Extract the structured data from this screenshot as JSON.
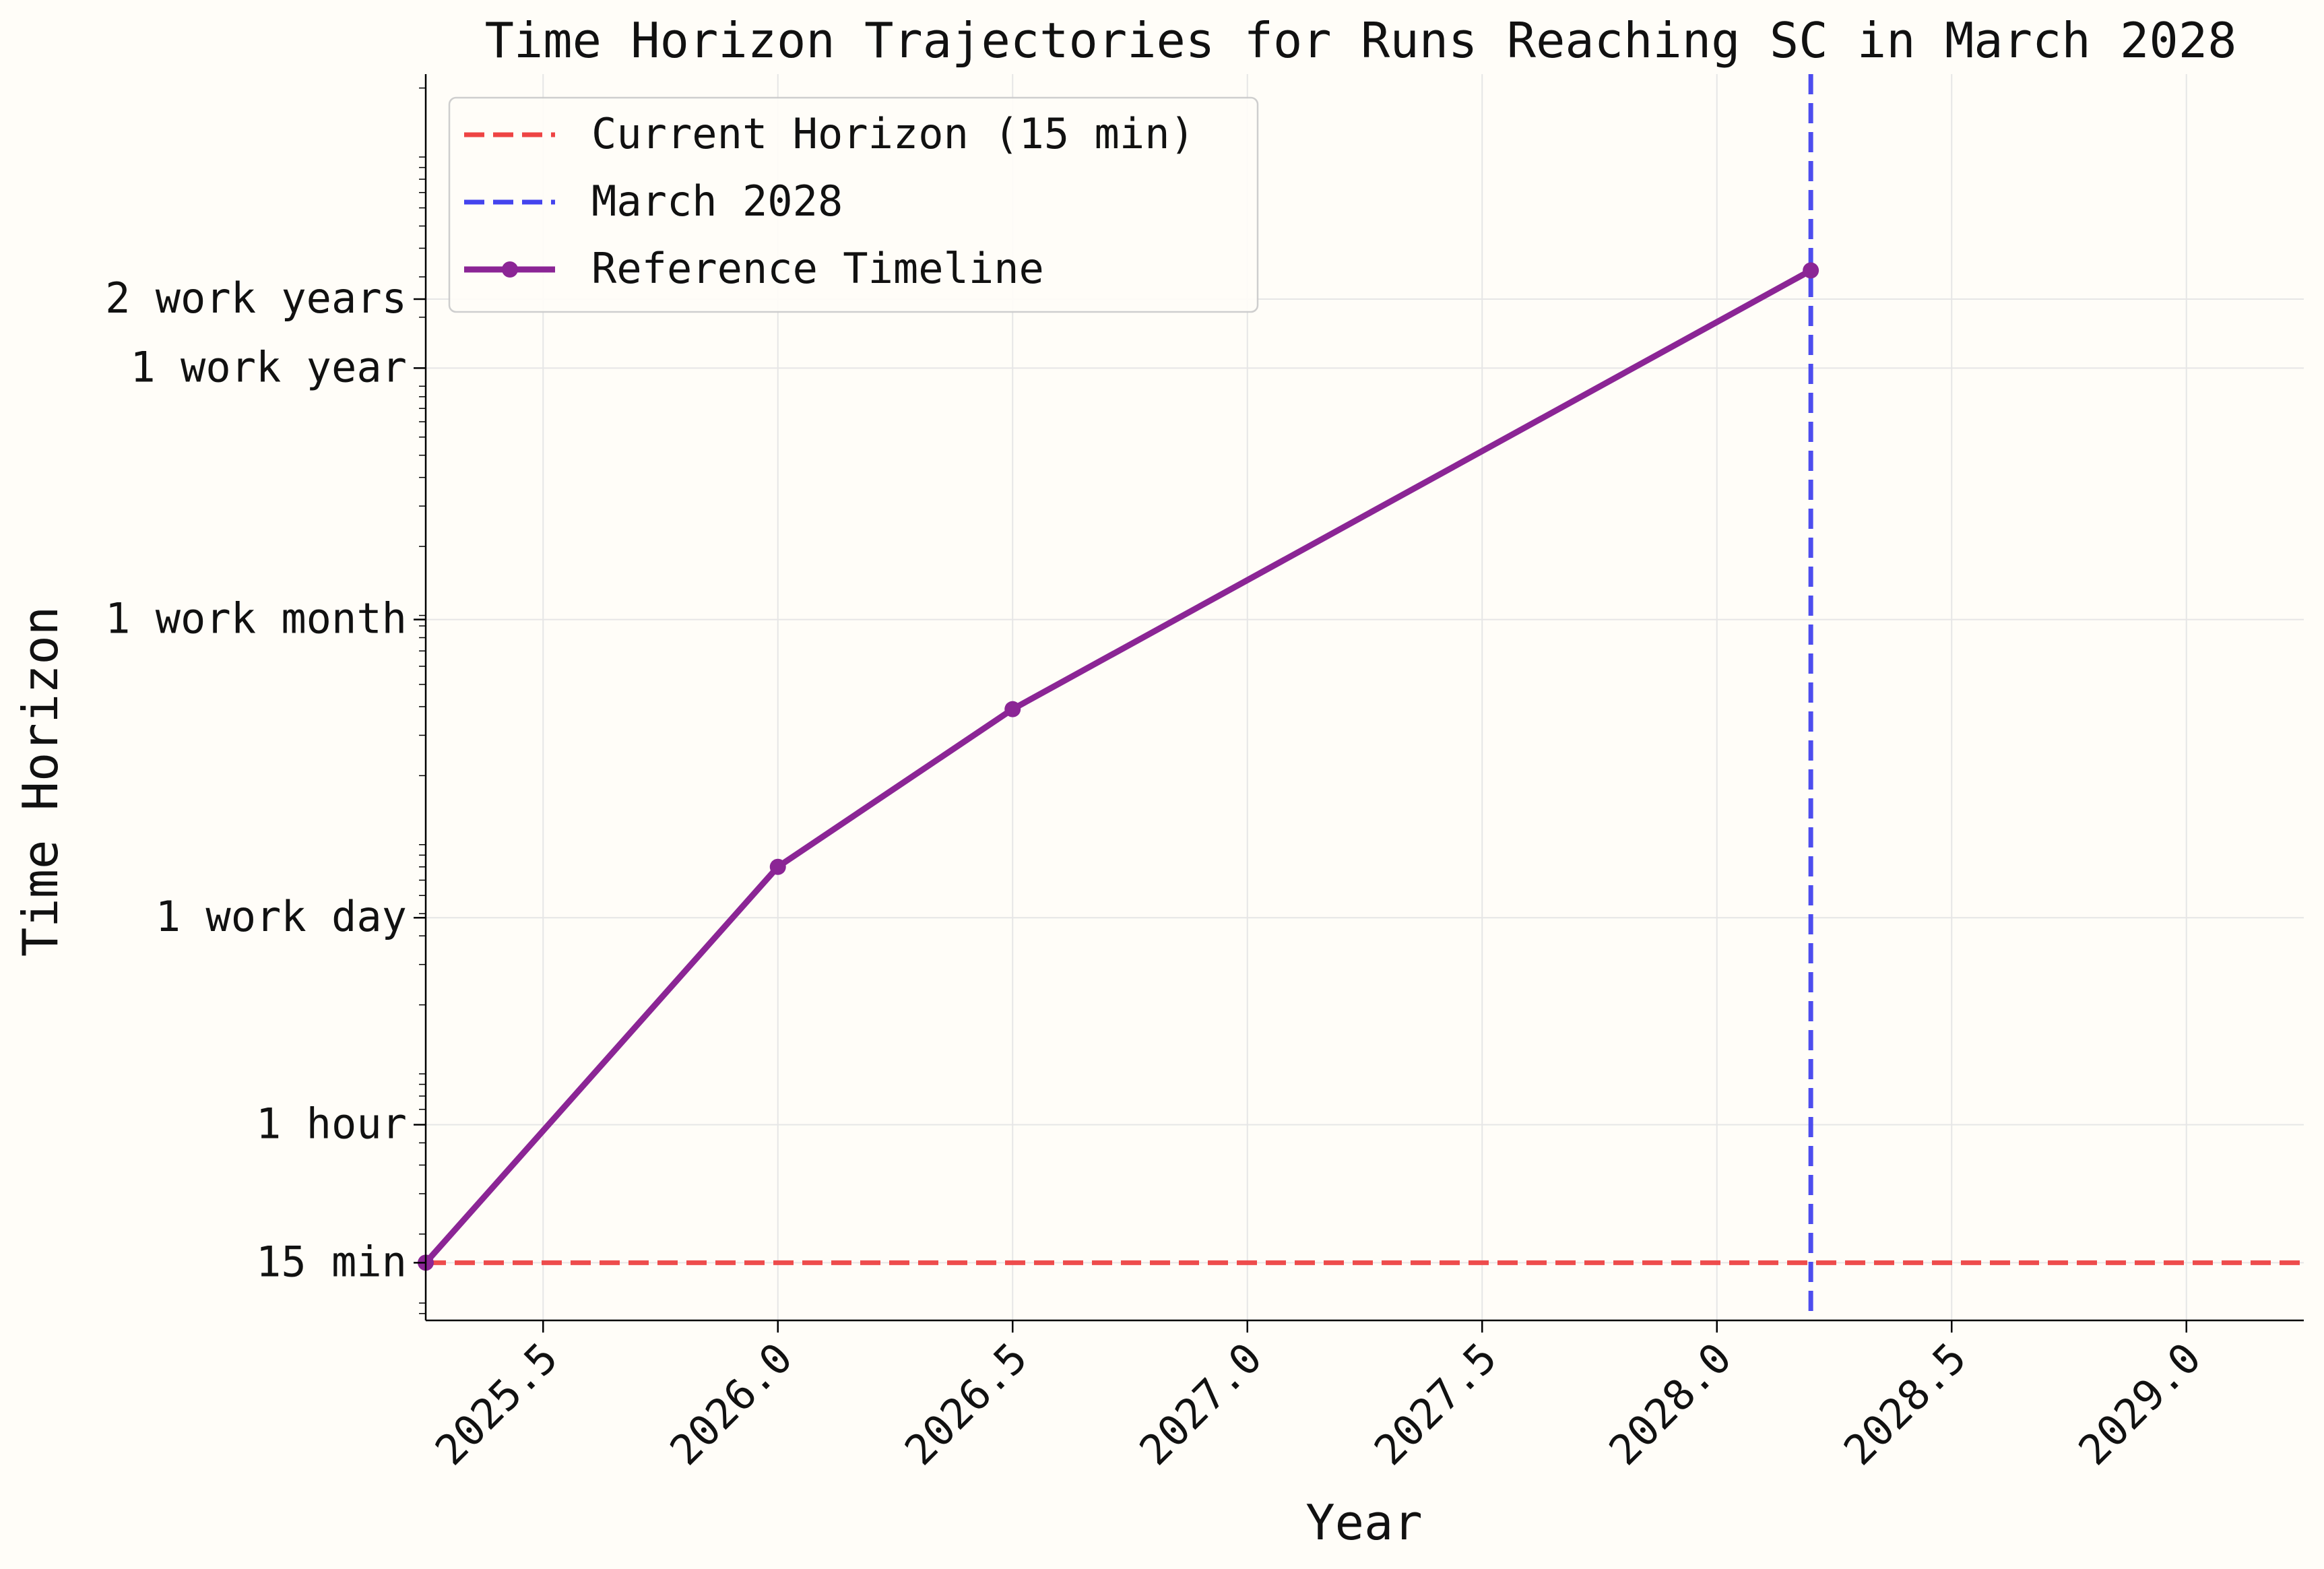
{
  "chart_data": {
    "type": "line",
    "title": "Time Horizon Trajectories for Runs Reaching SC in March 2028",
    "xlabel": "Year",
    "ylabel": "Time Horizon",
    "xlim": [
      2025.25,
      2029.25
    ],
    "ylim_minutes": [
      8.4,
      2300000
    ],
    "y_scale": "log",
    "grid": true,
    "legend_position": "top-left",
    "x_ticks": [
      2025.5,
      2026.0,
      2026.5,
      2027.0,
      2027.5,
      2028.0,
      2028.5,
      2029.0
    ],
    "x_tick_labels": [
      "2025.5",
      "2026.0",
      "2026.5",
      "2027.0",
      "2027.5",
      "2028.0",
      "2028.5",
      "2029.0"
    ],
    "y_ticks_minutes": [
      15,
      60,
      480,
      9600,
      120000,
      240000
    ],
    "y_tick_labels": [
      "15 min",
      "1 hour",
      "1 work day",
      "1 work month",
      "1 work year",
      "2 work years"
    ],
    "reference_lines": [
      {
        "name": "Current Horizon (15 min)",
        "orientation": "horizontal",
        "value_minutes": 15,
        "color": "#ee4444",
        "style": "dashed"
      },
      {
        "name": "March 2028",
        "orientation": "vertical",
        "value_year": 2028.2,
        "color": "#4444ee",
        "style": "dashed"
      }
    ],
    "series": [
      {
        "name": "Reference Timeline",
        "color": "#8b2595",
        "x": [
          2025.25,
          2026.0,
          2026.5,
          2028.2
        ],
        "y_minutes": [
          15,
          800,
          3900,
          320000
        ]
      }
    ]
  }
}
